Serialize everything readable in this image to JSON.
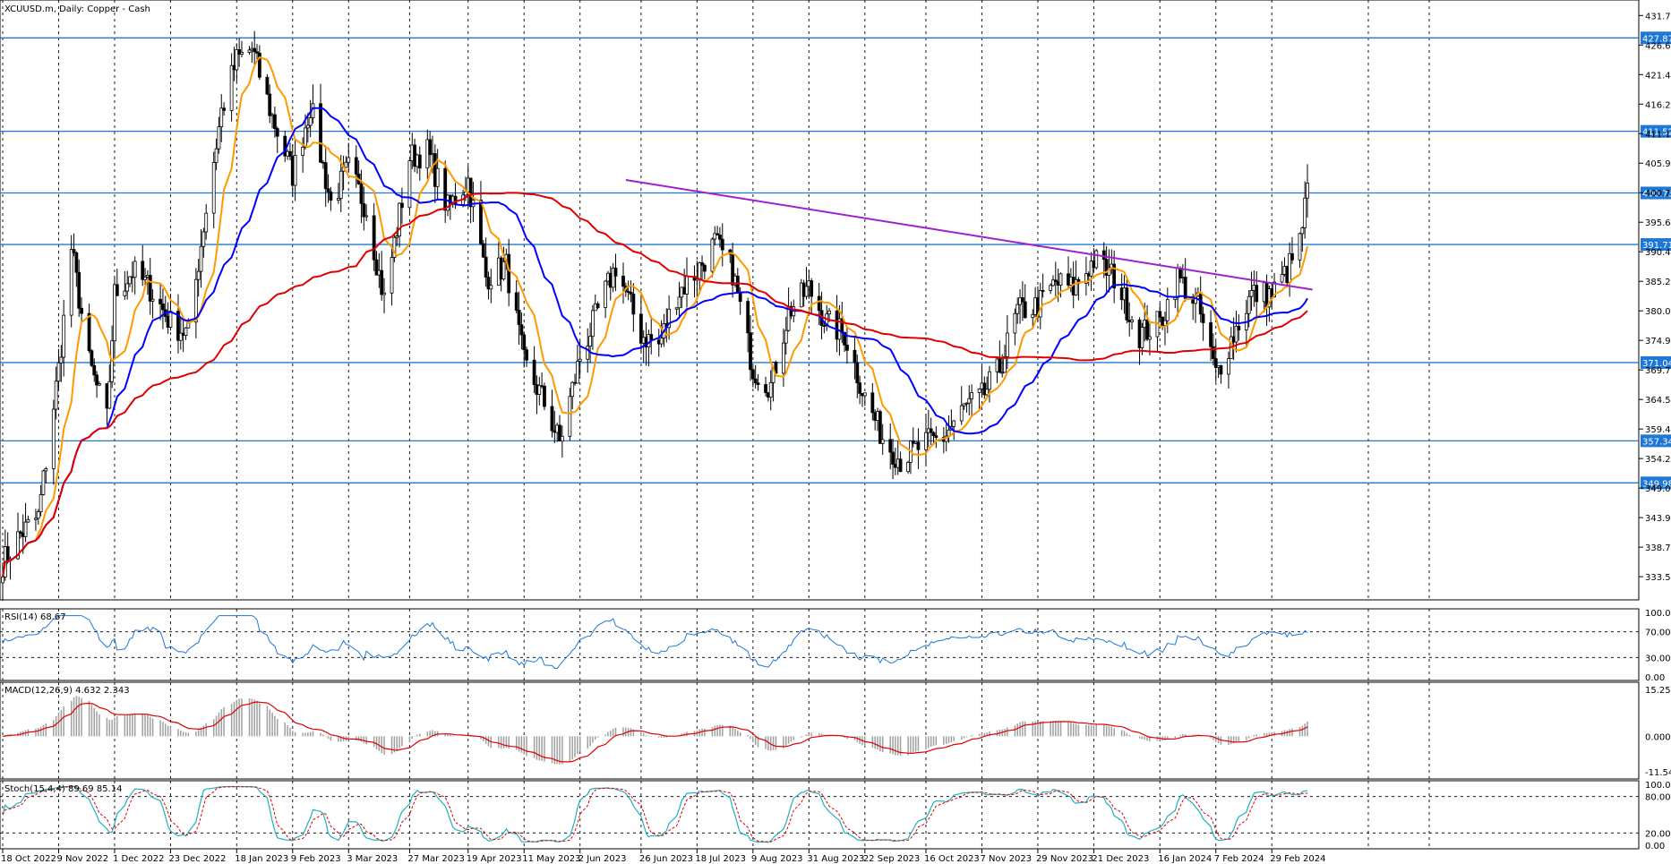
{
  "window": {
    "symbol": "XCUUSD.m",
    "timeframe": "Daily",
    "description": "Copper - Cash",
    "title": "XCUUSD.m, Daily:  Copper - Cash"
  },
  "colors": {
    "background": "#ffffff",
    "bull_candle": "#ffffff",
    "bear_candle": "#000000",
    "ma_fast": "#ff9900",
    "ma_mid": "#0000ff",
    "ma_slow": "#e00000",
    "horizontal_levels": "#1e78d6",
    "trendline": "#a020d0",
    "rsi": "#1e78d6",
    "macd_hist": "#a0a0a0",
    "macd_signal": "#e00000",
    "stoch_main": "#20b0c0",
    "stoch_signal": "#e00000"
  },
  "chart_data": [
    {
      "type": "candlestick",
      "name": "price",
      "yticks": [
        "431.79",
        "426.62",
        "421.45",
        "416.28",
        "411.11",
        "405.94",
        "400.77",
        "395.60",
        "390.43",
        "385.26",
        "380.09",
        "374.92",
        "369.75",
        "364.58",
        "359.41",
        "354.24",
        "349.07",
        "343.90",
        "338.73",
        "333.56"
      ],
      "ylim": [
        329.5,
        434.5
      ],
      "xlabels": [
        "18 Oct 2022",
        "9 Nov 2022",
        "1 Dec 2022",
        "23 Dec 2022",
        "18 Jan 2023",
        "9 Feb 2023",
        "3 Mar 2023",
        "27 Mar 2023",
        "19 Apr 2023",
        "11 May 2023",
        "2 Jun 2023",
        "26 Jun 2023",
        "18 Jul 2023",
        "9 Aug 2023",
        "31 Aug 2023",
        "22 Sep 2023",
        "16 Oct 2023",
        "7 Nov 2023",
        "29 Nov 2023",
        "21 Dec 2023",
        "16 Jan 2024",
        "7 Feb 2024",
        "29 Feb 2024"
      ],
      "levels": [
        {
          "label": "427.87",
          "value": 427.87
        },
        {
          "label": "411.52",
          "value": 411.52
        },
        {
          "label": "400.73",
          "value": 400.73
        },
        {
          "label": "391.71",
          "value": 391.71
        },
        {
          "label": "371.04",
          "value": 371.04
        },
        {
          "label": "357.34",
          "value": 357.34
        },
        {
          "label": "349.98",
          "value": 349.98
        }
      ],
      "trendline": {
        "from": [
          "20 Jun 2023",
          403.0
        ],
        "to": [
          "16 Mar 2024",
          383.8
        ]
      },
      "close_anchors": [
        [
          "18 Oct 2022",
          336
        ],
        [
          "25 Oct 2022",
          341
        ],
        [
          "1 Nov 2022",
          344
        ],
        [
          "9 Nov 2022",
          370
        ],
        [
          "14 Nov 2022",
          391
        ],
        [
          "21 Nov 2022",
          371
        ],
        [
          "28 Nov 2022",
          361
        ],
        [
          "1 Dec 2022",
          383
        ],
        [
          "8 Dec 2022",
          387
        ],
        [
          "15 Dec 2022",
          384
        ],
        [
          "23 Dec 2022",
          378
        ],
        [
          "30 Dec 2022",
          376
        ],
        [
          "5 Jan 2023",
          395
        ],
        [
          "12 Jan 2023",
          415
        ],
        [
          "18 Jan 2023",
          424
        ],
        [
          "24 Jan 2023",
          426
        ],
        [
          "1 Feb 2023",
          414
        ],
        [
          "9 Feb 2023",
          404
        ],
        [
          "16 Feb 2023",
          416
        ],
        [
          "24 Feb 2023",
          399
        ],
        [
          "3 Mar 2023",
          405
        ],
        [
          "10 Mar 2023",
          398
        ],
        [
          "17 Mar 2023",
          382
        ],
        [
          "27 Mar 2023",
          407
        ],
        [
          "3 Apr 2023",
          408
        ],
        [
          "11 Apr 2023",
          398
        ],
        [
          "19 Apr 2023",
          403
        ],
        [
          "26 Apr 2023",
          386
        ],
        [
          "4 May 2023",
          388
        ],
        [
          "11 May 2023",
          371
        ],
        [
          "18 May 2023",
          365
        ],
        [
          "25 May 2023",
          357
        ],
        [
          "2 Jun 2023",
          372
        ],
        [
          "9 Jun 2023",
          380
        ],
        [
          "16 Jun 2023",
          388
        ],
        [
          "26 Jun 2023",
          376
        ],
        [
          "3 Jul 2023",
          374
        ],
        [
          "10 Jul 2023",
          383
        ],
        [
          "18 Jul 2023",
          387
        ],
        [
          "25 Jul 2023",
          392
        ],
        [
          "1 Aug 2023",
          387
        ],
        [
          "9 Aug 2023",
          370
        ],
        [
          "16 Aug 2023",
          367
        ],
        [
          "23 Aug 2023",
          380
        ],
        [
          "31 Aug 2023",
          384
        ],
        [
          "7 Sep 2023",
          378
        ],
        [
          "14 Sep 2023",
          376
        ],
        [
          "22 Sep 2023",
          365
        ],
        [
          "29 Sep 2023",
          358
        ],
        [
          "6 Oct 2023",
          354
        ],
        [
          "16 Oct 2023",
          357
        ],
        [
          "23 Oct 2023",
          358
        ],
        [
          "31 Oct 2023",
          363
        ],
        [
          "7 Nov 2023",
          365
        ],
        [
          "14 Nov 2023",
          370
        ],
        [
          "21 Nov 2023",
          380
        ],
        [
          "29 Nov 2023",
          381
        ],
        [
          "6 Dec 2023",
          385
        ],
        [
          "13 Dec 2023",
          384
        ],
        [
          "21 Dec 2023",
          389
        ],
        [
          "29 Dec 2023",
          386
        ],
        [
          "8 Jan 2024",
          376
        ],
        [
          "16 Jan 2024",
          378
        ],
        [
          "23 Jan 2024",
          386
        ],
        [
          "31 Jan 2024",
          381
        ],
        [
          "7 Feb 2024",
          369
        ],
        [
          "14 Feb 2024",
          376
        ],
        [
          "21 Feb 2024",
          383
        ],
        [
          "29 Feb 2024",
          383
        ],
        [
          "6 Mar 2024",
          387
        ],
        [
          "11 Mar 2024",
          392
        ],
        [
          "14 Mar 2024",
          401
        ]
      ],
      "series": [
        {
          "name": "MA fast",
          "color": "#ff9900"
        },
        {
          "name": "MA mid",
          "color": "#0000ff"
        },
        {
          "name": "MA slow",
          "color": "#e00000"
        }
      ]
    },
    {
      "type": "line",
      "name": "rsi",
      "label": "RSI(14) 68.67",
      "yticks": [
        "100.00",
        "70.00",
        "30.00",
        "0.00"
      ],
      "ylim": [
        0,
        100
      ],
      "levels": [
        70,
        30
      ],
      "last": 68.67
    },
    {
      "type": "bar",
      "name": "macd",
      "label": "MACD(12,26,9) 4.632 2.343",
      "yticks": [
        "15.254",
        "0.000",
        "-11.548"
      ],
      "ylim": [
        -11.548,
        15.254
      ],
      "macd": 4.632,
      "signal": 2.343
    },
    {
      "type": "line",
      "name": "stochastic",
      "label": "Stoch(15,4,4) 89.69 85.14",
      "yticks": [
        "100.00",
        "80.00",
        "20.00",
        "0.00"
      ],
      "ylim": [
        0,
        100
      ],
      "levels": [
        80,
        20
      ],
      "main": 89.69,
      "signal": 85.14
    }
  ]
}
